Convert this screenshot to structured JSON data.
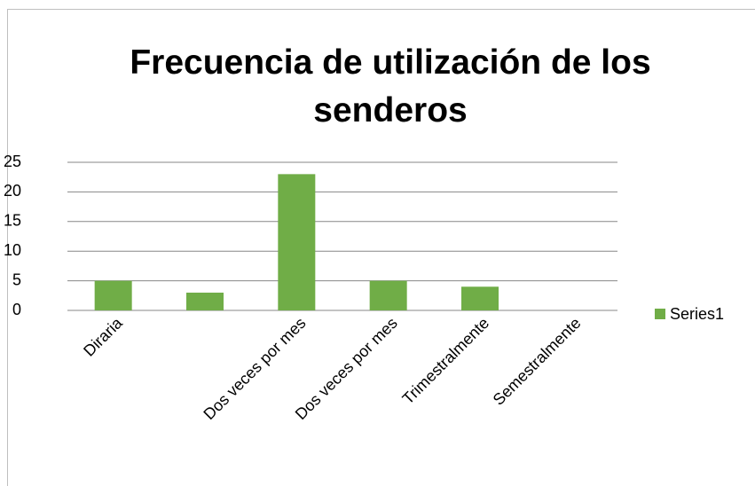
{
  "chart_data": {
    "type": "bar",
    "title": "Frecuencia de utilización de los senderos",
    "categories": [
      "Diraria",
      null,
      "Dos veces por mes",
      "Dos veces por mes",
      "Trimestralmente",
      "Semestralmente"
    ],
    "series": [
      {
        "name": "Series1",
        "color": "#70ad47",
        "values": [
          5,
          3,
          23,
          5,
          4,
          0
        ]
      }
    ],
    "ylim": [
      0,
      25
    ],
    "yticks": [
      0,
      5,
      10,
      15,
      20,
      25
    ],
    "grid": true,
    "legend": "right"
  }
}
